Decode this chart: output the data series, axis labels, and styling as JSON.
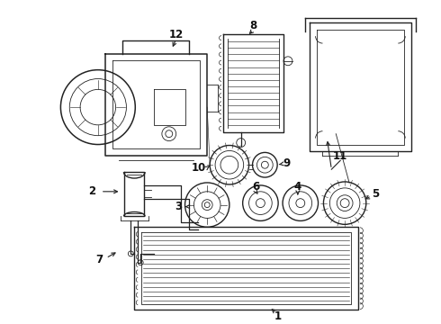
{
  "bg_color": "#ffffff",
  "line_color": "#222222",
  "lw": 1.0,
  "tlw": 0.6,
  "label_fontsize": 8.5,
  "fig_width": 4.9,
  "fig_height": 3.6,
  "dpi": 100,
  "xlim": [
    0,
    490
  ],
  "ylim": [
    0,
    360
  ]
}
